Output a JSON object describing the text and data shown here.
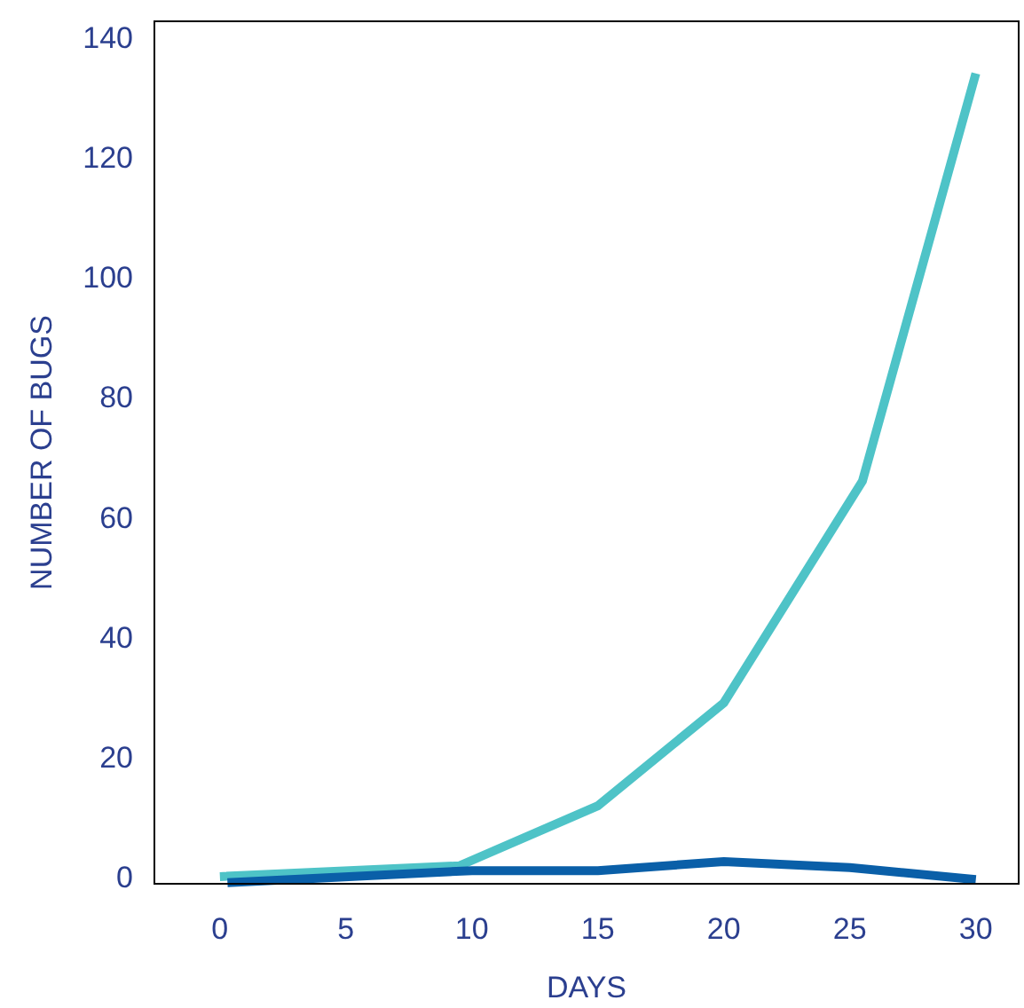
{
  "chart_data": {
    "type": "line",
    "xlabel": "DAYS",
    "ylabel": "NUMBER OF BUGS",
    "xlim": [
      -2.6,
      31.7
    ],
    "ylim": [
      -1.2,
      142.7
    ],
    "xticks": [
      0,
      5,
      10,
      15,
      20,
      25,
      30
    ],
    "yticks": [
      0,
      20,
      40,
      60,
      80,
      100,
      120,
      140
    ],
    "grid": false,
    "marker": "none",
    "line_style": "solid",
    "series": [
      {
        "color": "#4ec3c7",
        "x": [
          0,
          9.5,
          15,
          20,
          25.5,
          30
        ],
        "values": [
          0,
          1.8,
          11.8,
          29,
          66,
          134
        ]
      },
      {
        "color": "#0a5fa8",
        "x": [
          0.3,
          10,
          15,
          20,
          25,
          30
        ],
        "values": [
          -1,
          1,
          1,
          2.5,
          1.5,
          -0.5
        ]
      }
    ]
  }
}
